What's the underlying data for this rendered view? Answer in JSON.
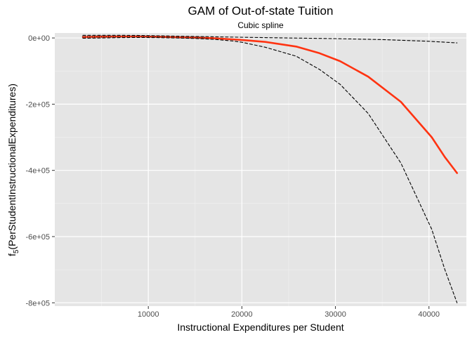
{
  "chart_data": {
    "type": "line",
    "title": "GAM of Out-of-state Tuition",
    "subtitle": "Cubic spline",
    "xlabel": "Instructional Expenditures per Student",
    "ylabel": {
      "prefix": "f",
      "subscript": "5",
      "suffix": "(PerStudentInstructionalExpenditures)"
    },
    "xlim": [
      0,
      44000
    ],
    "ylim": [
      -810000,
      15000
    ],
    "x_ticks": [
      {
        "value": 10000,
        "label": "10000"
      },
      {
        "value": 20000,
        "label": "20000"
      },
      {
        "value": 30000,
        "label": "30000"
      },
      {
        "value": 40000,
        "label": "40000"
      }
    ],
    "x_minor_ticks": [
      5000,
      15000,
      25000,
      35000
    ],
    "y_ticks": [
      {
        "value": 0,
        "label": "0e+00"
      },
      {
        "value": -200000,
        "label": "-2e+05"
      },
      {
        "value": -400000,
        "label": "-4e+05"
      },
      {
        "value": -600000,
        "label": "-6e+05"
      },
      {
        "value": -800000,
        "label": "-8e+05"
      }
    ],
    "y_minor_ticks": [
      -100000,
      -300000,
      -500000,
      -700000
    ],
    "grid": true,
    "series": [
      {
        "role": "fit",
        "color": "#ff3311",
        "dash": "solid",
        "points": [
          [
            3000,
            3000
          ],
          [
            5000,
            4000
          ],
          [
            7000,
            4500
          ],
          [
            9000,
            4500
          ],
          [
            11000,
            3500
          ],
          [
            13000,
            2000
          ],
          [
            15000,
            1000
          ],
          [
            17000,
            -1000
          ],
          [
            19000,
            -4000
          ],
          [
            20000,
            -6000
          ],
          [
            22500,
            -12000
          ],
          [
            25800,
            -26000
          ],
          [
            28300,
            -46000
          ],
          [
            30500,
            -70000
          ],
          [
            33500,
            -117000
          ],
          [
            37000,
            -193000
          ],
          [
            40300,
            -300000
          ],
          [
            41700,
            -360000
          ],
          [
            43000,
            -408000
          ]
        ]
      },
      {
        "role": "upper-band",
        "color": "#000000",
        "dash": "dashed",
        "points": [
          [
            3000,
            8000
          ],
          [
            5000,
            8000
          ],
          [
            7000,
            8000
          ],
          [
            9000,
            7500
          ],
          [
            11000,
            6500
          ],
          [
            13000,
            5500
          ],
          [
            15000,
            4500
          ],
          [
            17000,
            3500
          ],
          [
            20000,
            2000
          ],
          [
            25000,
            0
          ],
          [
            30000,
            -2000
          ],
          [
            35000,
            -5000
          ],
          [
            40000,
            -10000
          ],
          [
            43000,
            -15000
          ]
        ]
      },
      {
        "role": "lower-band",
        "color": "#000000",
        "dash": "dashed",
        "points": [
          [
            3000,
            -1000
          ],
          [
            5000,
            0
          ],
          [
            7000,
            1000
          ],
          [
            9000,
            1500
          ],
          [
            11000,
            1000
          ],
          [
            13000,
            0
          ],
          [
            15000,
            -1500
          ],
          [
            17000,
            -4000
          ],
          [
            19000,
            -9000
          ],
          [
            20000,
            -13000
          ],
          [
            22500,
            -28000
          ],
          [
            25800,
            -55000
          ],
          [
            28300,
            -95000
          ],
          [
            30500,
            -140000
          ],
          [
            33500,
            -228000
          ],
          [
            37000,
            -378000
          ],
          [
            40300,
            -578000
          ],
          [
            41700,
            -700000
          ],
          [
            43000,
            -800000
          ]
        ]
      }
    ],
    "rug_region": {
      "x_from": 3000,
      "x_to": 16000
    }
  }
}
